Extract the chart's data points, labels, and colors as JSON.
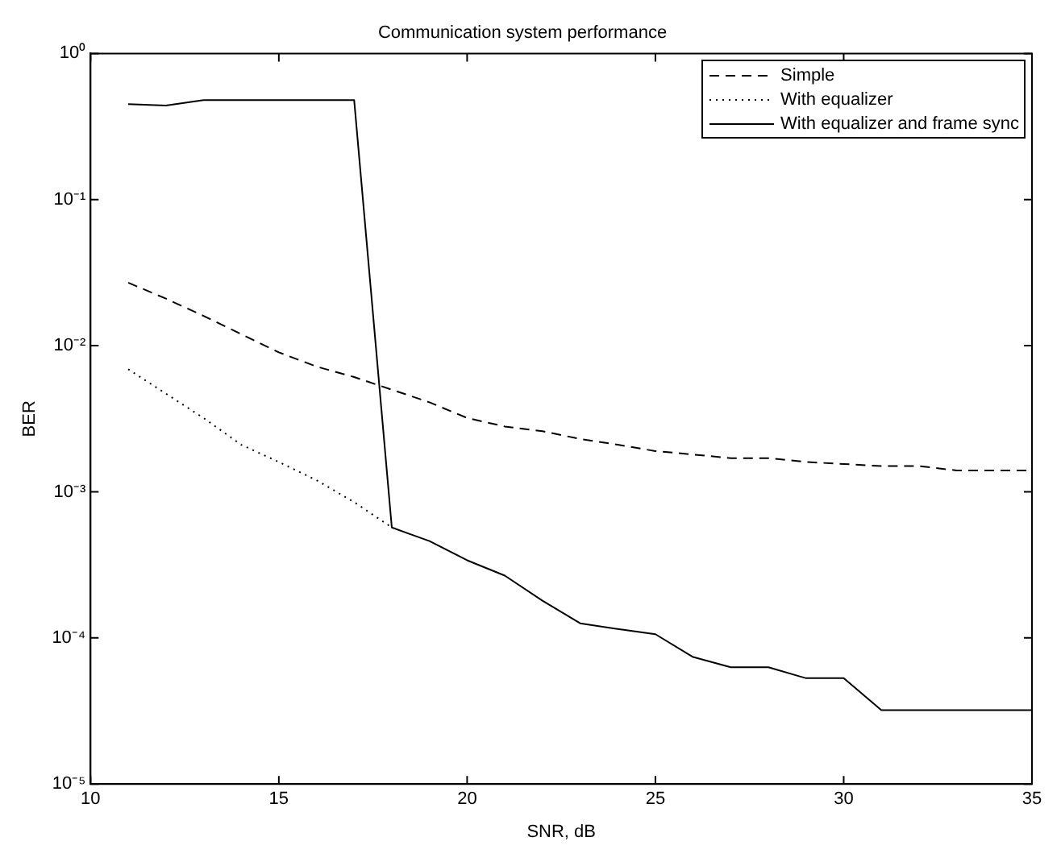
{
  "chart_data": {
    "type": "line",
    "title": "Communication system performance",
    "xlabel": "SNR, dB",
    "ylabel": "BER",
    "x": [
      11,
      12,
      13,
      14,
      15,
      16,
      17,
      18,
      19,
      20,
      21,
      22,
      23,
      24,
      25,
      26,
      27,
      28,
      29,
      30,
      31,
      32,
      33,
      34,
      35
    ],
    "series": [
      {
        "name": "Simple",
        "color": "#000000",
        "line_style": "dashed",
        "values": [
          0.027,
          0.021,
          0.016,
          0.012,
          0.009,
          0.0072,
          0.0061,
          0.005,
          0.0041,
          0.0032,
          0.0028,
          0.0026,
          0.0023,
          0.0021,
          0.0019,
          0.0018,
          0.0017,
          0.0017,
          0.0016,
          0.00155,
          0.0015,
          0.0015,
          0.0014,
          0.0014,
          0.0014
        ]
      },
      {
        "name": "With equalizer",
        "color": "#000000",
        "line_style": "dotted",
        "values": [
          0.0069,
          0.0047,
          0.0032,
          0.0021,
          0.0016,
          0.0012,
          0.00085,
          0.00057,
          null,
          null,
          null,
          null,
          null,
          null,
          null,
          null,
          null,
          null,
          null,
          null,
          null,
          null,
          null,
          null,
          null
        ]
      },
      {
        "name": "With equalizer and frame sync",
        "color": "#000000",
        "line_style": "solid",
        "values": [
          0.45,
          0.44,
          0.48,
          0.48,
          0.48,
          0.48,
          0.48,
          0.00057,
          0.00046,
          0.00034,
          0.000267,
          0.00018,
          0.000126,
          0.000115,
          0.000106,
          7.4e-05,
          6.3e-05,
          6.3e-05,
          5.3e-05,
          5.3e-05,
          3.2e-05,
          3.2e-05,
          3.2e-05,
          3.2e-05,
          3.2e-05
        ]
      }
    ],
    "xlim": [
      10,
      35
    ],
    "xticks": [
      10,
      15,
      20,
      25,
      30,
      35
    ],
    "log": "y",
    "ylim": [
      1e-05,
      1
    ],
    "yticks": [
      {
        "value": 1e-05,
        "label": "10⁻⁵"
      },
      {
        "value": 0.0001,
        "label": "10⁻⁴"
      },
      {
        "value": 0.001,
        "label": "10⁻³"
      },
      {
        "value": 0.01,
        "label": "10⁻²"
      },
      {
        "value": 0.1,
        "label": "10⁻¹"
      },
      {
        "value": 1,
        "label": "10⁰"
      }
    ],
    "grid": false,
    "legend": "top right",
    "marker": "none"
  }
}
